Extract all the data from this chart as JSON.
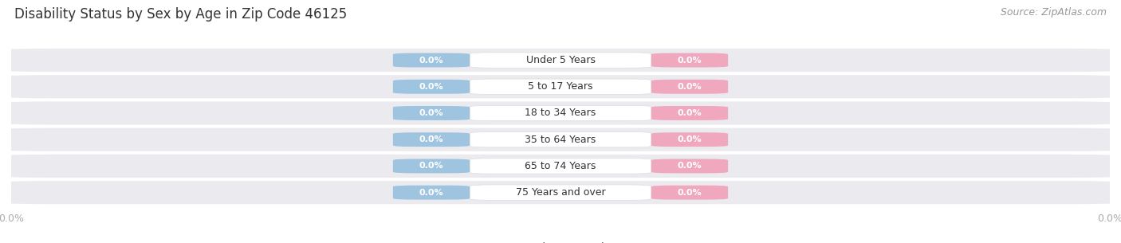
{
  "title": "Disability Status by Sex by Age in Zip Code 46125",
  "source": "Source: ZipAtlas.com",
  "categories": [
    "Under 5 Years",
    "5 to 17 Years",
    "18 to 34 Years",
    "35 to 64 Years",
    "65 to 74 Years",
    "75 Years and over"
  ],
  "male_values": [
    0.0,
    0.0,
    0.0,
    0.0,
    0.0,
    0.0
  ],
  "female_values": [
    0.0,
    0.0,
    0.0,
    0.0,
    0.0,
    0.0
  ],
  "male_color": "#9ec4e0",
  "female_color": "#f0a8be",
  "row_bg_color": "#ebebef",
  "row_bg_alt": "#f5f5f8",
  "title_color": "#333333",
  "source_color": "#999999",
  "axis_label_color": "#aaaaaa",
  "legend_male_color": "#7aaed0",
  "legend_female_color": "#f090b0",
  "figsize": [
    14.06,
    3.05
  ],
  "dpi": 100,
  "title_fontsize": 12,
  "source_fontsize": 9,
  "category_fontsize": 9,
  "value_fontsize": 8,
  "axis_fontsize": 9,
  "legend_fontsize": 9
}
